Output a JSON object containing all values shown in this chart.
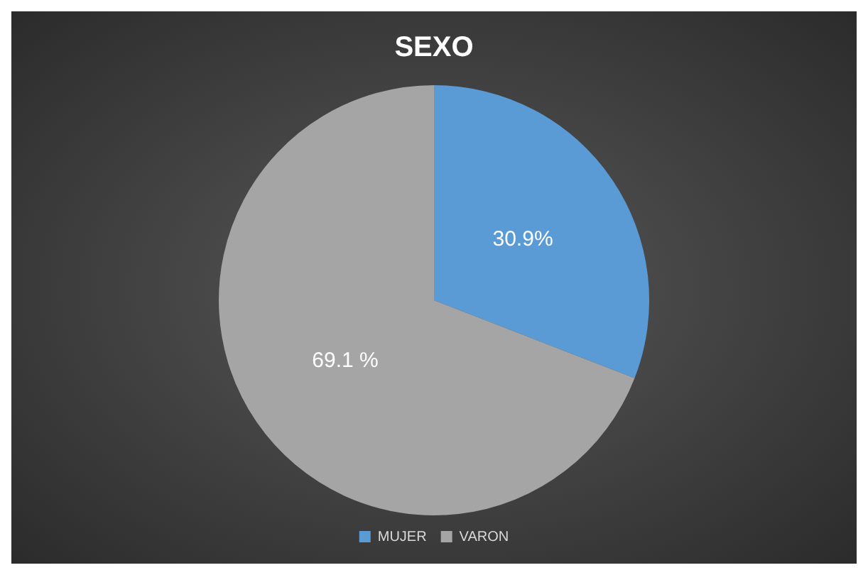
{
  "chart_data": {
    "type": "pie",
    "title": "SEXO",
    "categories": [
      "MUJER",
      "VARON"
    ],
    "values": [
      30.9,
      69.1
    ],
    "colors": [
      "#5b9bd5",
      "#a5a5a5"
    ],
    "value_labels": [
      "30.9%",
      "69.1 %"
    ],
    "legend": "bottom"
  }
}
